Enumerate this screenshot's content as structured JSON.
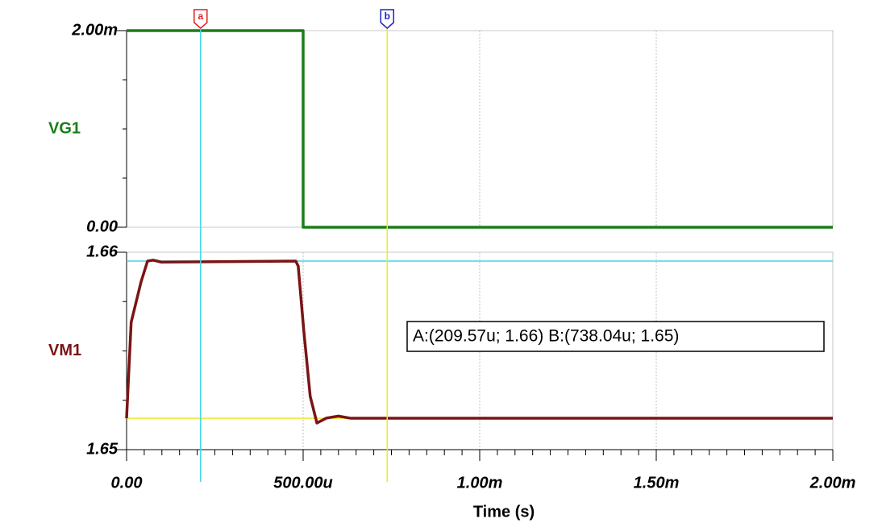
{
  "chart_data": [
    {
      "type": "line",
      "xlim": [
        0,
        0.002
      ],
      "xticks": [
        0,
        0.0005,
        0.001,
        0.0015,
        0.002
      ],
      "ylim": [
        0,
        0.002
      ],
      "yticks": [
        {
          "value": 0.002,
          "label": "2.00m"
        },
        {
          "value": 0,
          "label": "0.00"
        }
      ],
      "grid": true,
      "series": [
        {
          "name": "VG1",
          "color": "#1a7d1a",
          "x": [
            0,
            0.0005,
            0.0005,
            0.002
          ],
          "values": [
            0.002,
            0.002,
            0,
            0
          ]
        }
      ]
    },
    {
      "type": "line",
      "xlabel": "Time (s)",
      "xlim": [
        0,
        0.002
      ],
      "xticks": [
        {
          "value": 0,
          "label": "0.00"
        },
        {
          "value": 0.0005,
          "label": "500.00u"
        },
        {
          "value": 0.001,
          "label": "1.00m"
        },
        {
          "value": 0.0015,
          "label": "1.50m"
        },
        {
          "value": 0.002,
          "label": "2.00m"
        }
      ],
      "ylim": [
        1.65,
        1.66
      ],
      "yticks": [
        1.66,
        1.65
      ],
      "grid": true,
      "series": [
        {
          "name": "VM1",
          "color": "#7b1414",
          "x": [
            0,
            1.3e-05,
            4.1e-05,
            5.94e-05,
            7.53e-05,
            9.82e-05,
            0.000479,
            0.000486,
            0.000502,
            0.00052,
            0.000539,
            0.000566,
            0.0006,
            0.000635,
            0.002
          ],
          "values": [
            1.65159,
            1.65645,
            1.6585,
            1.65955,
            1.6596,
            1.6595,
            1.65955,
            1.6593,
            1.656,
            1.6527,
            1.65135,
            1.6516,
            1.6517,
            1.65159,
            1.65159
          ]
        }
      ],
      "cursors": [
        {
          "label": "a",
          "x": 0.00020957,
          "y": 1.65955,
          "color": "#3fd7e8",
          "flag": "#e02020"
        },
        {
          "label": "b",
          "x": 0.00073804,
          "y": 1.65159,
          "color": "#efec1c",
          "flag": "#2020c8"
        }
      ],
      "annotation": "A:(209.57u; 1.66) B:(738.04u; 1.65)"
    }
  ]
}
